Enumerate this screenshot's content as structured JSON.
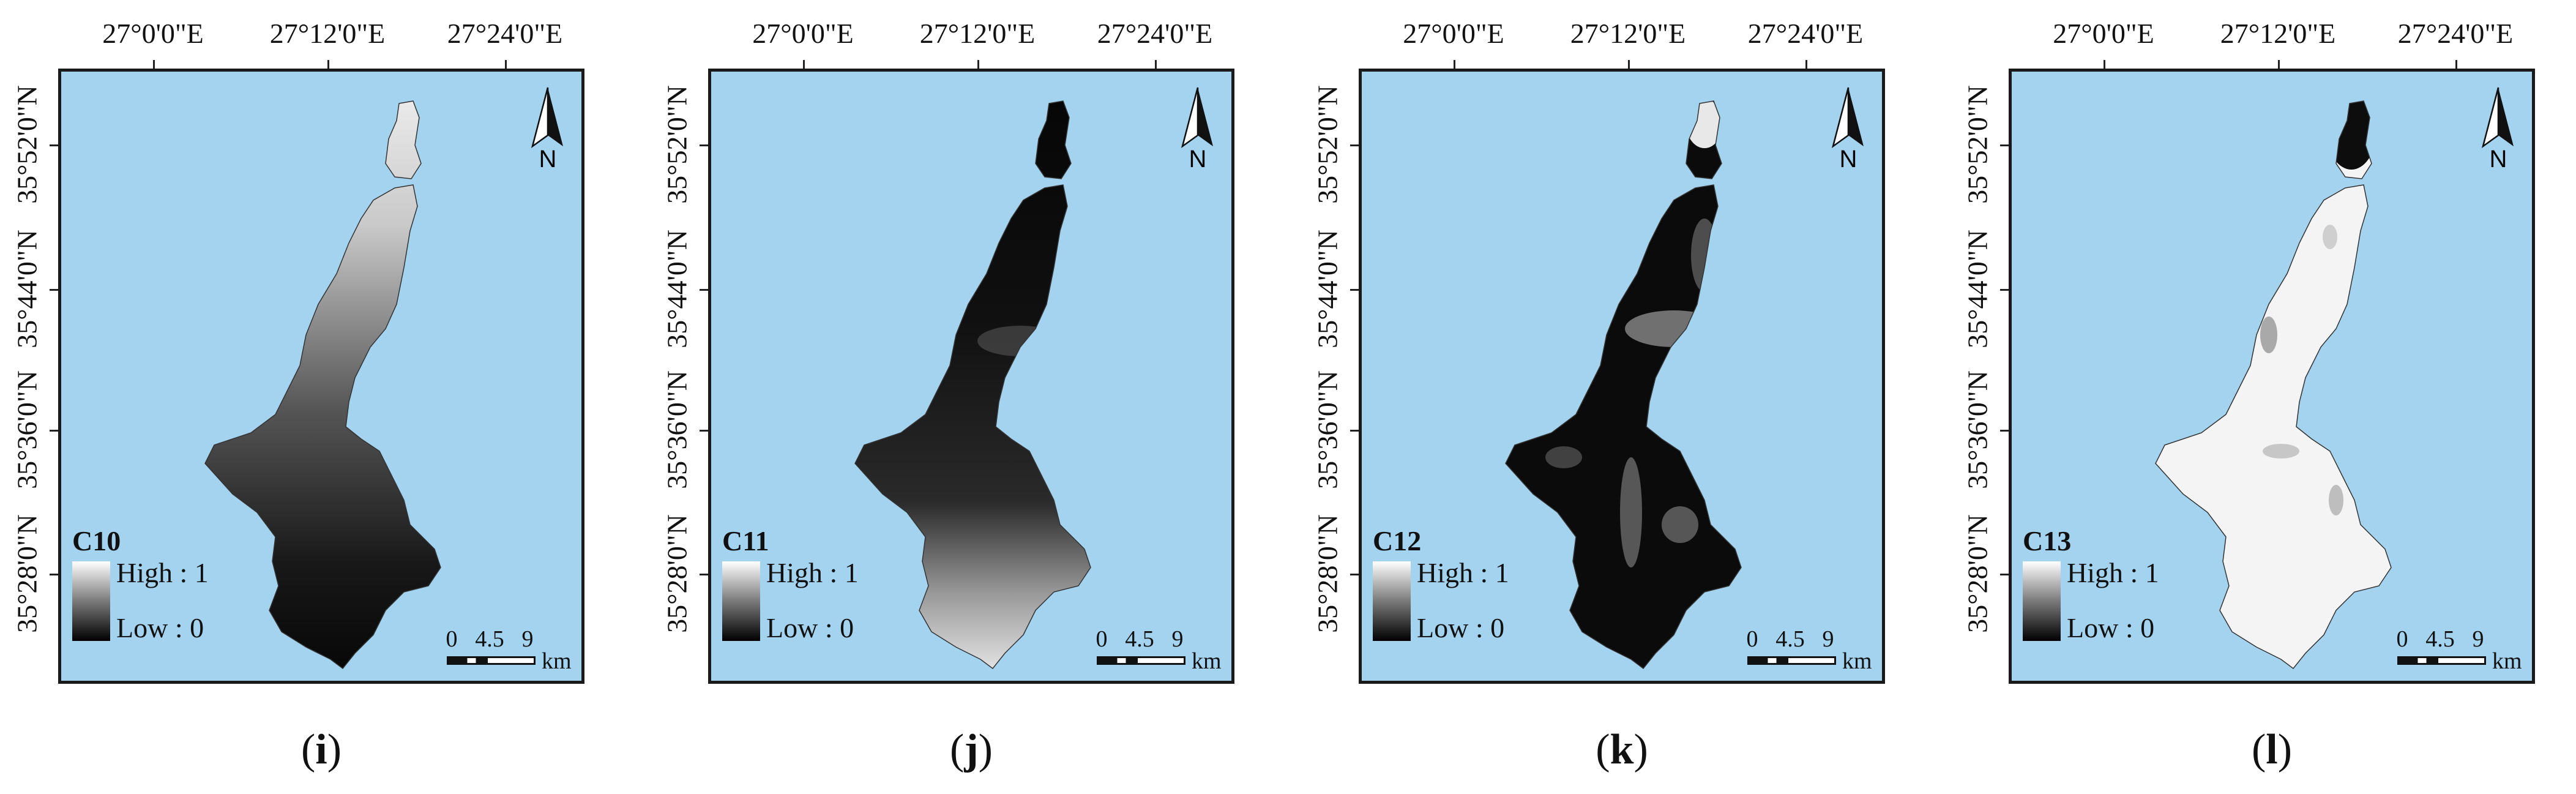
{
  "x_ticks": [
    "27°0'0\"E",
    "27°12'0\"E",
    "27°24'0\"E"
  ],
  "y_ticks": [
    "35°52'0\"N",
    "35°44'0\"N",
    "35°36'0\"N",
    "35°28'0\"N"
  ],
  "north_label": "N",
  "scalebar": {
    "ticks": [
      "0",
      "4.5",
      "9"
    ],
    "unit": "km"
  },
  "legend": {
    "high": "High : 1",
    "low": "Low : 0"
  },
  "panels": [
    {
      "letter": "i",
      "label_open": "(",
      "label_close": ")",
      "title": "C10",
      "fill_style": "north_bright"
    },
    {
      "letter": "j",
      "label_open": "(",
      "label_close": ")",
      "title": "C11",
      "fill_style": "south_bright"
    },
    {
      "letter": "k",
      "label_open": "(",
      "label_close": ")",
      "title": "C12",
      "fill_style": "dark_streaks"
    },
    {
      "letter": "l",
      "label_open": "(",
      "label_close": ")",
      "title": "C13",
      "fill_style": "mostly_white"
    }
  ],
  "colors": {
    "sea": "#a3d3ef",
    "frame": "#1a1a1a",
    "high": "#ffffff",
    "low": "#000000"
  }
}
